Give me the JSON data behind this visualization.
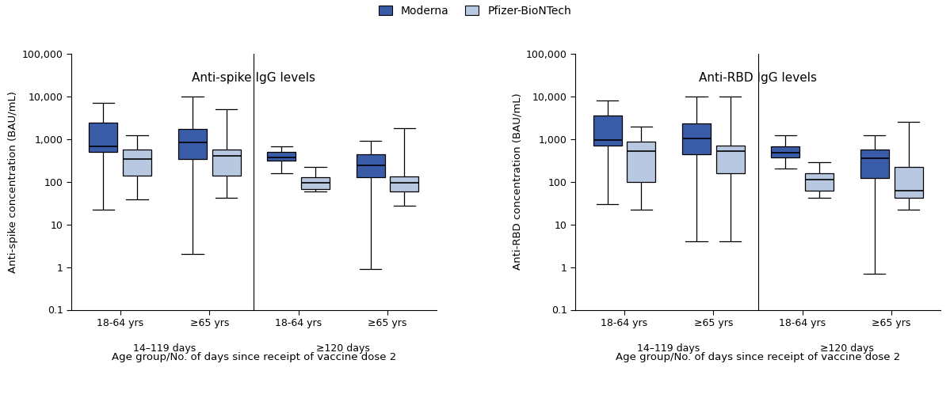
{
  "left_title": "Anti-spike IgG levels",
  "right_title": "Anti-RBD IgG levels",
  "left_ylabel": "Anti-spike concentration (BAU/mL)",
  "right_ylabel": "Anti-RBD concentration (BAU/mL)",
  "xlabel": "Age group/No. of days since receipt of vaccine dose 2",
  "legend_labels": [
    "Moderna",
    "Pfizer-BioNTech"
  ],
  "moderna_color": "#3a5ca8",
  "pfizer_color": "#b8c8e0",
  "age_groups": [
    "18-64 yrs",
    "≥65 yrs",
    "18-64 yrs",
    "≥65 yrs"
  ],
  "day_groups": [
    "14–119 days",
    "≥120 days"
  ],
  "spike": {
    "moderna": [
      {
        "whislo": 22,
        "q1": 500,
        "med": 680,
        "q3": 2400,
        "whishi": 7000
      },
      {
        "whislo": 2,
        "q1": 340,
        "med": 820,
        "q3": 1700,
        "whishi": 10000
      },
      {
        "whislo": 160,
        "q1": 310,
        "med": 370,
        "q3": 490,
        "whishi": 680
      },
      {
        "whislo": 0.9,
        "q1": 130,
        "med": 240,
        "q3": 440,
        "whishi": 920
      }
    ],
    "pfizer": [
      {
        "whislo": 38,
        "q1": 140,
        "med": 340,
        "q3": 580,
        "whishi": 1200
      },
      {
        "whislo": 42,
        "q1": 140,
        "med": 400,
        "q3": 560,
        "whishi": 5000
      },
      {
        "whislo": 58,
        "q1": 68,
        "med": 96,
        "q3": 130,
        "whishi": 220
      },
      {
        "whislo": 28,
        "q1": 58,
        "med": 96,
        "q3": 135,
        "whishi": 1800
      }
    ]
  },
  "rbd": {
    "moderna": [
      {
        "whislo": 30,
        "q1": 700,
        "med": 950,
        "q3": 3500,
        "whishi": 8000
      },
      {
        "whislo": 4,
        "q1": 440,
        "med": 1050,
        "q3": 2300,
        "whishi": 10000
      },
      {
        "whislo": 200,
        "q1": 370,
        "med": 480,
        "q3": 680,
        "whishi": 1200
      },
      {
        "whislo": 0.7,
        "q1": 120,
        "med": 360,
        "q3": 560,
        "whishi": 1200
      }
    ],
    "pfizer": [
      {
        "whislo": 22,
        "q1": 100,
        "med": 520,
        "q3": 870,
        "whishi": 2000
      },
      {
        "whislo": 4,
        "q1": 160,
        "med": 520,
        "q3": 700,
        "whishi": 10000
      },
      {
        "whislo": 42,
        "q1": 62,
        "med": 110,
        "q3": 160,
        "whishi": 290
      },
      {
        "whislo": 22,
        "q1": 42,
        "med": 62,
        "q3": 220,
        "whishi": 2500
      }
    ]
  }
}
